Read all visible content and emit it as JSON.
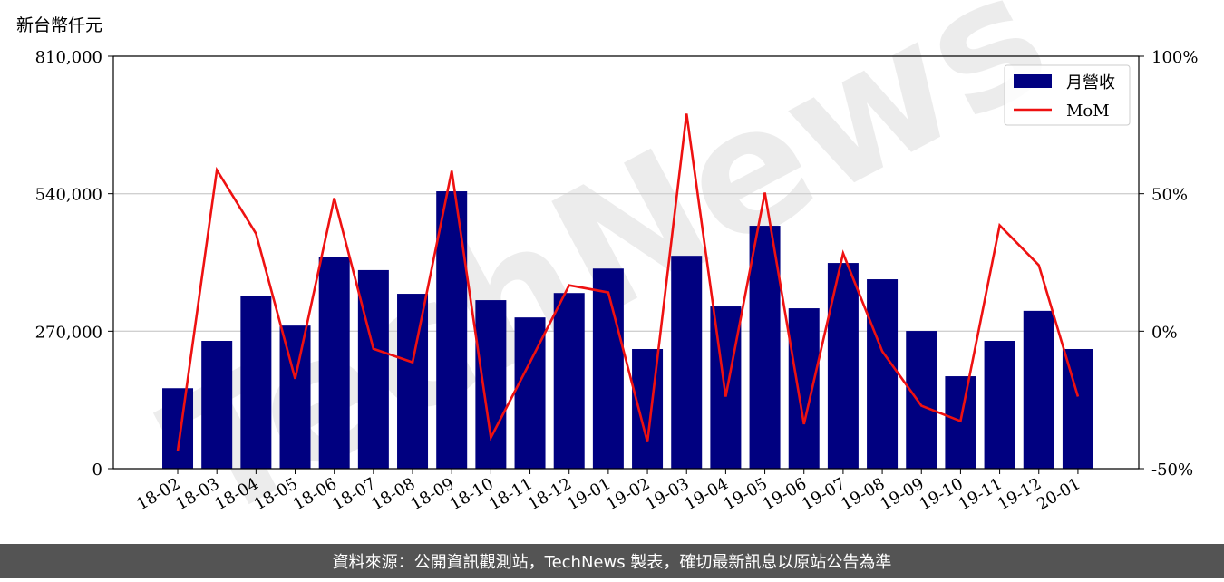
{
  "chart_data": {
    "type": "bar-line",
    "y_label": "新台幣仟元",
    "watermark": "TechNews",
    "footer": "資料來源：公開資訊觀測站，TechNews 製表，確切最新訊息以原站公告為準",
    "categories": [
      "18-02",
      "18-03",
      "18-04",
      "18-05",
      "18-06",
      "18-07",
      "18-08",
      "18-09",
      "18-10",
      "18-11",
      "18-12",
      "19-01",
      "19-02",
      "19-03",
      "19-04",
      "19-05",
      "19-06",
      "19-07",
      "19-08",
      "19-09",
      "19-10",
      "19-11",
      "19-12",
      "20-01"
    ],
    "series": [
      {
        "name": "月營收",
        "type": "bar",
        "color": "#000080",
        "values": [
          158000,
          251000,
          340000,
          281000,
          416500,
          390000,
          343500,
          544700,
          331000,
          297000,
          345000,
          393000,
          235000,
          418000,
          318600,
          477000,
          315000,
          404000,
          372000,
          270500,
          181500,
          251000,
          310000,
          235000
        ]
      },
      {
        "name": "MoM",
        "type": "line",
        "axis": "y2",
        "color": "#ee1111",
        "values": [
          -43.6,
          58.6,
          35.5,
          -17.3,
          48.4,
          -6.4,
          -11.3,
          58.3,
          -38.7,
          -11.3,
          16.7,
          14.1,
          -40.3,
          79.1,
          -23.8,
          50.4,
          -33.8,
          28.3,
          -7.3,
          -27.1,
          -32.7,
          38.5,
          24.0,
          -23.8
        ]
      }
    ],
    "ylim": [
      0,
      810000
    ],
    "yticks": [
      0,
      {
        "value": 270000,
        "label": "270,000"
      },
      {
        "value": 540000,
        "label": "540,000"
      },
      {
        "value": 810000,
        "label": "810,000"
      }
    ],
    "y2lim": [
      -50,
      100
    ],
    "y2ticks": [
      {
        "value": -50,
        "label": "-50%"
      },
      {
        "value": 0,
        "label": "0%"
      },
      {
        "value": 50,
        "label": "50%"
      },
      {
        "value": 100,
        "label": "100%"
      }
    ],
    "grid": true,
    "legend": "upper right"
  }
}
